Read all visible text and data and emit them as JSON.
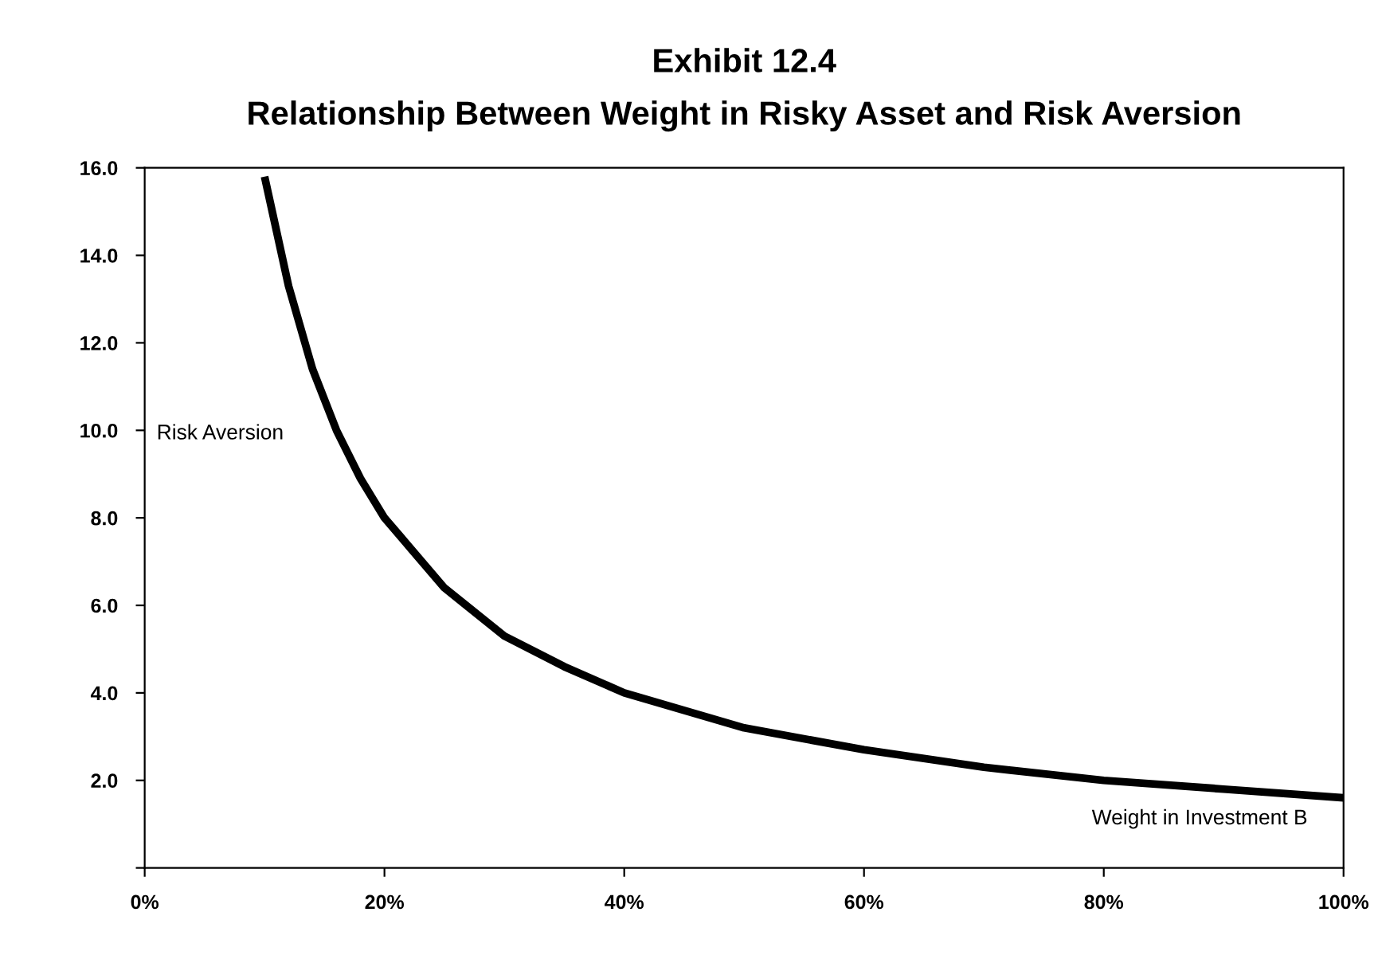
{
  "chart_data": {
    "type": "line",
    "title": "Exhibit 12.4\nRelationship Between Weight in Risky Asset and Risk Aversion",
    "xlabel": "Weight in Investment B",
    "ylabel": "Risk Aversion",
    "x": [
      10,
      12,
      14,
      16,
      18,
      20,
      25,
      30,
      35,
      40,
      45,
      50,
      60,
      70,
      80,
      90,
      100
    ],
    "series": [
      {
        "color": "#000000",
        "values": [
          15.8,
          13.3,
          11.4,
          10.0,
          8.9,
          8.0,
          6.4,
          5.3,
          4.6,
          4.0,
          3.6,
          3.2,
          2.7,
          2.3,
          2.0,
          1.8,
          1.6
        ]
      }
    ],
    "xlim": [
      0,
      100
    ],
    "ylim": [
      0,
      16
    ],
    "xticks": [
      {
        "value": 0,
        "label": "0%"
      },
      {
        "value": 20,
        "label": "20%"
      },
      {
        "value": 40,
        "label": "40%"
      },
      {
        "value": 60,
        "label": "60%"
      },
      {
        "value": 80,
        "label": "80%"
      },
      {
        "value": 100,
        "label": "100%"
      }
    ],
    "yticks": [
      {
        "value": 0,
        "label": null
      },
      {
        "value": 2,
        "label": "2.0"
      },
      {
        "value": 4,
        "label": "4.0"
      },
      {
        "value": 6,
        "label": "6.0"
      },
      {
        "value": 8,
        "label": "8.0"
      },
      {
        "value": 10,
        "label": "10.0"
      },
      {
        "value": 12,
        "label": "12.0"
      },
      {
        "value": 14,
        "label": "14.0"
      },
      {
        "value": 16,
        "label": "16.0"
      }
    ],
    "grid": false,
    "legend": false,
    "marker": "none",
    "line_style": "solid"
  }
}
